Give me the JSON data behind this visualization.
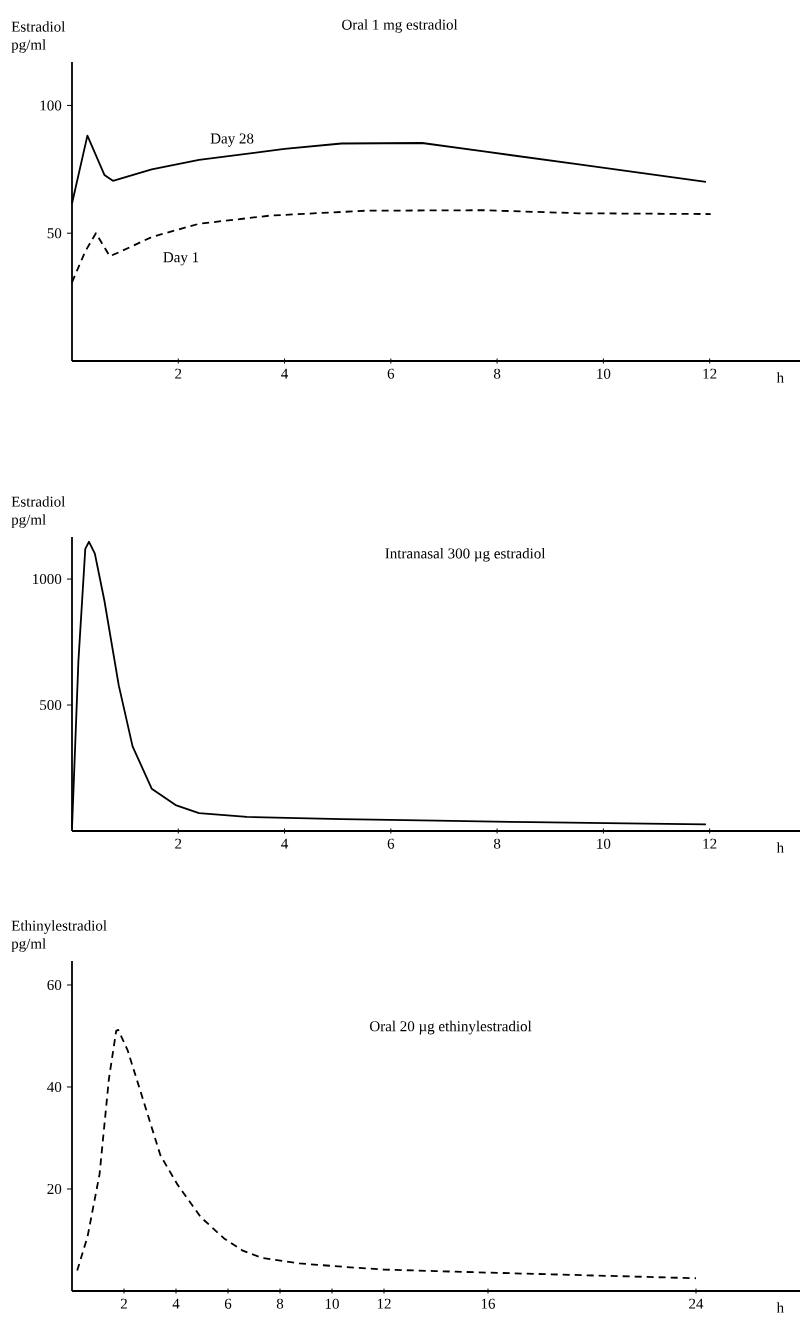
{
  "chart_data": [
    {
      "type": "line",
      "title": "Oral 1 mg estradiol",
      "xlabel": "h",
      "ylabel": "Estradiol pg/ml",
      "xlim": [
        0,
        13.7
      ],
      "ylim": [
        0,
        117
      ],
      "xticks": [
        2,
        4,
        6,
        8,
        10,
        12
      ],
      "yticks": [
        50,
        100
      ],
      "legend": false,
      "grid": false,
      "series": [
        {
          "name": "Day 28",
          "color": "#000000",
          "line_style": "solid",
          "x": [
            0,
            0.29,
            0.61,
            0.77,
            1.5,
            2.39,
            4,
            5.07,
            6.59,
            7.75,
            9.54,
            11.93
          ],
          "values": [
            61.6,
            88.2,
            72.8,
            70.5,
            75,
            78.7,
            83,
            85.1,
            85.3,
            82,
            76.9,
            70.1
          ]
        },
        {
          "name": "Day 1",
          "color": "#000000",
          "line_style": "dashed",
          "x": [
            0,
            0.25,
            0.45,
            0.71,
            0.88,
            1.5,
            2.39,
            3.73,
            5.52,
            7.75,
            9.54,
            12.02
          ],
          "values": [
            30.8,
            42.9,
            50,
            41,
            42.5,
            48.5,
            53.7,
            56.9,
            58.8,
            59,
            57.8,
            57.5
          ]
        }
      ]
    },
    {
      "type": "line",
      "title": "Intranasal 300 µg estradiol",
      "xlabel": "h",
      "ylabel": "Estradiol pg/ml",
      "xlim": [
        0,
        13.7
      ],
      "ylim": [
        0,
        1167
      ],
      "xticks": [
        2,
        4,
        6,
        8,
        10,
        12
      ],
      "yticks": [
        500,
        1000
      ],
      "legend": false,
      "grid": false,
      "series": [
        {
          "color": "#000000",
          "line_style": "solid",
          "x": [
            0,
            0.12,
            0.25,
            0.32,
            0.43,
            0.61,
            0.88,
            1.14,
            1.5,
            1.95,
            2.39,
            3.29,
            5.07,
            6.86,
            8.64,
            10.43,
            11.93
          ],
          "values": [
            9,
            672,
            1120,
            1148,
            1101,
            914,
            578,
            336,
            168,
            103,
            71,
            56,
            47,
            41,
            35,
            30,
            26
          ]
        }
      ]
    },
    {
      "type": "line",
      "title": "Oral 20 µg ethinylestradiol",
      "xlabel": "h",
      "ylabel": "Ethinylestradiol pg/ml",
      "xlim": [
        0,
        28
      ],
      "ylim": [
        0,
        64.7
      ],
      "xticks": [
        2,
        4,
        6,
        8,
        10,
        12,
        16,
        24
      ],
      "yticks": [
        20,
        40,
        60
      ],
      "legend": false,
      "grid": false,
      "series": [
        {
          "color": "#000000",
          "line_style": "dashed",
          "x": [
            0.2,
            0.6,
            1.06,
            1.42,
            1.7,
            1.78,
            2.14,
            2.6,
            3.4,
            4.04,
            4.95,
            5.85,
            6.57,
            7.3,
            8.74,
            10.55,
            12,
            13.96,
            16,
            24
          ],
          "values": [
            4,
            10.7,
            22.9,
            41.6,
            51,
            51.2,
            47.2,
            39.7,
            26.6,
            21,
            14.5,
            10.3,
            7.9,
            6.5,
            5.4,
            4.7,
            4.2,
            3.9,
            3.6,
            2.5
          ]
        }
      ]
    }
  ]
}
